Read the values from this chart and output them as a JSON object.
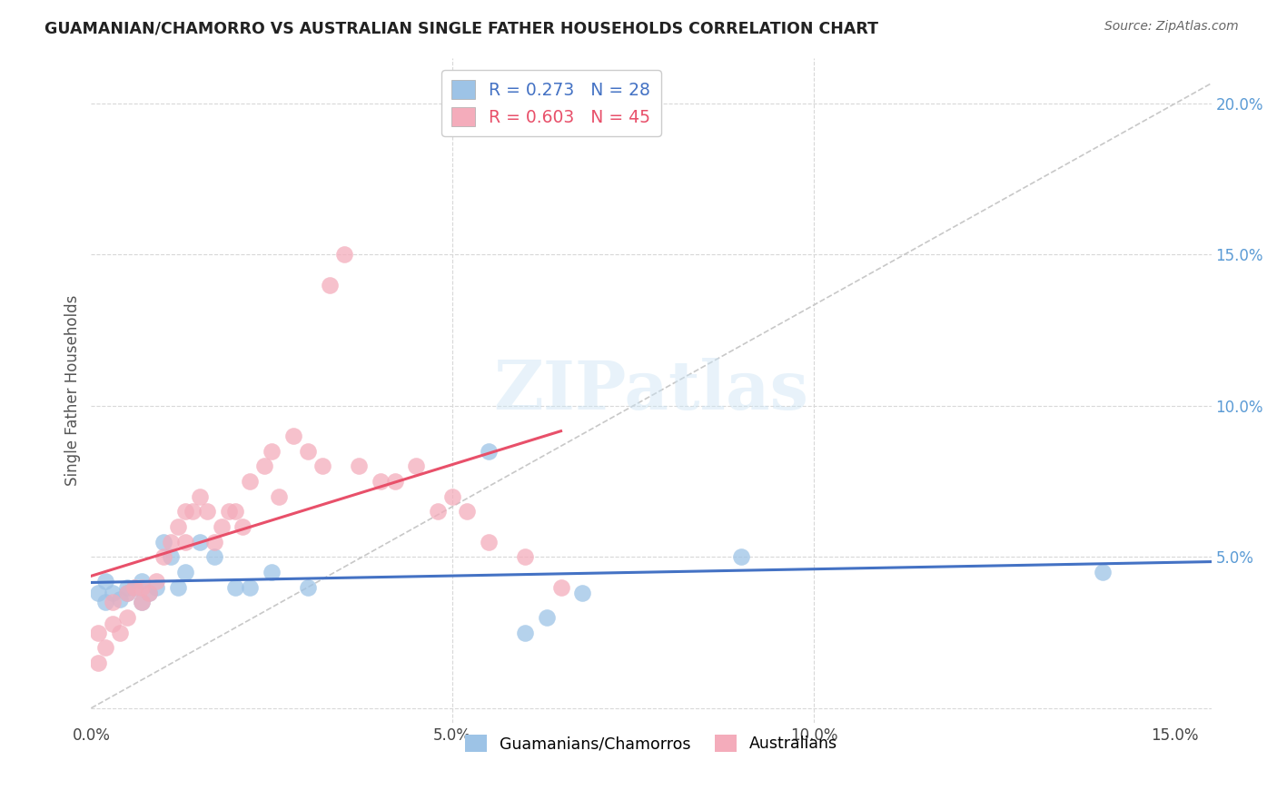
{
  "title": "GUAMANIAN/CHAMORRO VS AUSTRALIAN SINGLE FATHER HOUSEHOLDS CORRELATION CHART",
  "source": "Source: ZipAtlas.com",
  "ylabel_left": "Single Father Households",
  "xlim": [
    0.0,
    0.155
  ],
  "ylim": [
    -0.005,
    0.215
  ],
  "xtick_vals": [
    0.0,
    0.05,
    0.1,
    0.15
  ],
  "xtick_labels": [
    "0.0%",
    "5.0%",
    "10.0%",
    "15.0%"
  ],
  "ytick_vals": [
    0.0,
    0.05,
    0.1,
    0.15,
    0.2
  ],
  "ytick_labels_right": [
    "",
    "5.0%",
    "10.0%",
    "15.0%",
    "20.0%"
  ],
  "blue_line_color": "#4472c4",
  "pink_line_color": "#e8506a",
  "blue_scatter_color": "#9dc3e6",
  "pink_scatter_color": "#f4acbb",
  "diagonal_color": "#c8c8c8",
  "grid_color": "#d8d8d8",
  "watermark": "ZIPatlas",
  "guam_x": [
    0.001,
    0.002,
    0.002,
    0.003,
    0.004,
    0.005,
    0.005,
    0.006,
    0.007,
    0.007,
    0.008,
    0.009,
    0.01,
    0.011,
    0.012,
    0.013,
    0.015,
    0.017,
    0.02,
    0.022,
    0.025,
    0.03,
    0.055,
    0.06,
    0.063,
    0.068,
    0.09,
    0.14
  ],
  "guam_y": [
    0.038,
    0.042,
    0.035,
    0.038,
    0.036,
    0.04,
    0.038,
    0.04,
    0.035,
    0.042,
    0.038,
    0.04,
    0.055,
    0.05,
    0.04,
    0.045,
    0.055,
    0.05,
    0.04,
    0.04,
    0.045,
    0.04,
    0.085,
    0.025,
    0.03,
    0.038,
    0.05,
    0.045
  ],
  "aus_x": [
    0.001,
    0.001,
    0.002,
    0.003,
    0.003,
    0.004,
    0.005,
    0.005,
    0.006,
    0.007,
    0.007,
    0.008,
    0.009,
    0.01,
    0.011,
    0.012,
    0.013,
    0.013,
    0.014,
    0.015,
    0.016,
    0.017,
    0.018,
    0.019,
    0.02,
    0.021,
    0.022,
    0.024,
    0.025,
    0.026,
    0.028,
    0.03,
    0.032,
    0.033,
    0.035,
    0.037,
    0.04,
    0.042,
    0.045,
    0.048,
    0.05,
    0.052,
    0.055,
    0.06,
    0.065
  ],
  "aus_y": [
    0.015,
    0.025,
    0.02,
    0.028,
    0.035,
    0.025,
    0.038,
    0.03,
    0.04,
    0.035,
    0.04,
    0.038,
    0.042,
    0.05,
    0.055,
    0.06,
    0.065,
    0.055,
    0.065,
    0.07,
    0.065,
    0.055,
    0.06,
    0.065,
    0.065,
    0.06,
    0.075,
    0.08,
    0.085,
    0.07,
    0.09,
    0.085,
    0.08,
    0.14,
    0.15,
    0.08,
    0.075,
    0.075,
    0.08,
    0.065,
    0.07,
    0.065,
    0.055,
    0.05,
    0.04
  ],
  "legend1_labels": [
    "R = 0.273   N = 28",
    "R = 0.603   N = 45"
  ],
  "legend2_labels": [
    "Guamanians/Chamorros",
    "Australians"
  ]
}
